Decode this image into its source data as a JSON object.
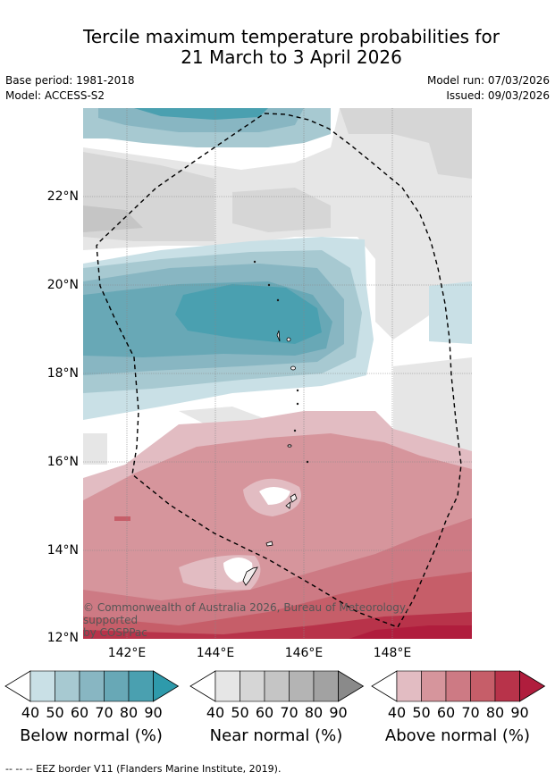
{
  "title_line1": "Tercile maximum temperature probabilities for",
  "title_line2": "21 March to 3 April 2026",
  "base_period": "Base period: 1981-2018",
  "model": "Model: ACCESS-S2",
  "model_run": "Model run: 07/03/2026",
  "issued": "Issued: 09/03/2026",
  "lat_labels": [
    "22°N",
    "20°N",
    "18°N",
    "16°N",
    "14°N",
    "12°N"
  ],
  "lon_labels": [
    "142°E",
    "144°E",
    "146°E",
    "148°E"
  ],
  "copyright_line1": "© Commonwealth of Australia 2026, Bureau of Meteorology, supported",
  "copyright_line2": "by COSPPac",
  "colorbars": [
    {
      "title": "Below normal (%)",
      "ticks": [
        "40",
        "50",
        "60",
        "70",
        "80",
        "90"
      ],
      "colors": [
        "#ffffff",
        "#c9e0e6",
        "#a7c9d1",
        "#88b6c2",
        "#68a8b6",
        "#4aa0b0",
        "#2e9aab"
      ]
    },
    {
      "title": "Near normal (%)",
      "ticks": [
        "40",
        "50",
        "60",
        "70",
        "80",
        "90"
      ],
      "colors": [
        "#ffffff",
        "#e6e6e6",
        "#d6d6d6",
        "#c5c5c5",
        "#b4b4b4",
        "#a2a2a2",
        "#8a8a8a"
      ]
    },
    {
      "title": "Above normal (%)",
      "ticks": [
        "40",
        "50",
        "60",
        "70",
        "80",
        "90"
      ],
      "colors": [
        "#ffffff",
        "#e2bcc2",
        "#d6959c",
        "#cd7a84",
        "#c65e69",
        "#b8334a",
        "#b01d3d"
      ]
    }
  ],
  "footer": "-- -- -- EEZ border V11 (Flanders Marine Institute, 2019)."
}
